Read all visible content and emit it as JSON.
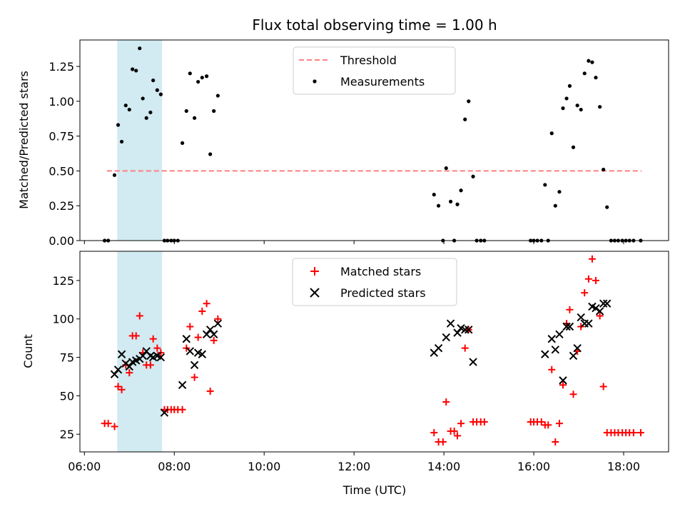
{
  "chart_data": {
    "type": "scatter",
    "title": "Flux total observing time = 1.00 h",
    "xlabel": "Time (UTC)",
    "x_ticks": [
      "06:00",
      "08:00",
      "10:00",
      "12:00",
      "14:00",
      "16:00",
      "18:00"
    ],
    "xlim": [
      5.9,
      19.0
    ],
    "shaded_region": {
      "x": [
        6.73,
        7.73
      ],
      "color": "#add8e6"
    },
    "colors": {
      "threshold": "#ff7f7f",
      "measurements": "#000000",
      "matched": "#ff0000",
      "predicted": "#000000"
    },
    "panels": [
      {
        "ylabel": "Matched/Predicted stars",
        "ylim": [
          0,
          1.44
        ],
        "y_ticks": [
          "0.00",
          "0.25",
          "0.50",
          "0.75",
          "1.00",
          "1.25"
        ],
        "y_tick_values": [
          0,
          0.25,
          0.5,
          0.75,
          1.0,
          1.25
        ],
        "legend": {
          "position": "top-center",
          "entries": [
            "Threshold",
            "Measurements"
          ]
        },
        "threshold": {
          "name": "Threshold",
          "y": 0.5,
          "x": [
            6.5,
            18.4
          ]
        },
        "series": [
          {
            "name": "Measurements",
            "marker": "dot",
            "points": [
              [
                6.45,
                0
              ],
              [
                6.53,
                0
              ],
              [
                6.67,
                0.47
              ],
              [
                6.75,
                0.83
              ],
              [
                6.83,
                0.71
              ],
              [
                6.92,
                0.97
              ],
              [
                7.0,
                0.94
              ],
              [
                7.07,
                1.23
              ],
              [
                7.15,
                1.22
              ],
              [
                7.23,
                1.38
              ],
              [
                7.3,
                1.02
              ],
              [
                7.38,
                0.88
              ],
              [
                7.47,
                0.92
              ],
              [
                7.53,
                1.15
              ],
              [
                7.62,
                1.08
              ],
              [
                7.7,
                1.05
              ],
              [
                7.78,
                0
              ],
              [
                7.85,
                0
              ],
              [
                7.93,
                0
              ],
              [
                8.0,
                0
              ],
              [
                8.08,
                0
              ],
              [
                8.18,
                0.7
              ],
              [
                8.27,
                0.93
              ],
              [
                8.35,
                1.2
              ],
              [
                8.45,
                0.88
              ],
              [
                8.53,
                1.14
              ],
              [
                8.62,
                1.17
              ],
              [
                8.72,
                1.18
              ],
              [
                8.8,
                0.62
              ],
              [
                8.88,
                0.93
              ],
              [
                8.97,
                1.04
              ],
              [
                13.78,
                0.33
              ],
              [
                13.88,
                0.25
              ],
              [
                13.98,
                0
              ],
              [
                14.05,
                0.52
              ],
              [
                14.15,
                0.28
              ],
              [
                14.23,
                0
              ],
              [
                14.3,
                0.26
              ],
              [
                14.38,
                0.36
              ],
              [
                14.47,
                0.87
              ],
              [
                14.55,
                1.0
              ],
              [
                14.65,
                0.46
              ],
              [
                14.73,
                0
              ],
              [
                14.82,
                0
              ],
              [
                14.9,
                0
              ],
              [
                15.93,
                0
              ],
              [
                16.0,
                0
              ],
              [
                16.08,
                0
              ],
              [
                16.17,
                0
              ],
              [
                16.25,
                0.4
              ],
              [
                16.32,
                0
              ],
              [
                16.4,
                0.77
              ],
              [
                16.48,
                0.25
              ],
              [
                16.57,
                0.35
              ],
              [
                16.65,
                0.95
              ],
              [
                16.73,
                1.02
              ],
              [
                16.8,
                1.11
              ],
              [
                16.88,
                0.67
              ],
              [
                16.97,
                0.97
              ],
              [
                17.05,
                0.94
              ],
              [
                17.13,
                1.2
              ],
              [
                17.22,
                1.29
              ],
              [
                17.3,
                1.28
              ],
              [
                17.38,
                1.17
              ],
              [
                17.47,
                0.96
              ],
              [
                17.55,
                0.51
              ],
              [
                17.63,
                0.24
              ],
              [
                17.72,
                0
              ],
              [
                17.8,
                0
              ],
              [
                17.88,
                0
              ],
              [
                17.97,
                0
              ],
              [
                18.05,
                0
              ],
              [
                18.13,
                0
              ],
              [
                18.22,
                0
              ],
              [
                18.38,
                0
              ]
            ]
          }
        ]
      },
      {
        "ylabel": "Count",
        "ylim": [
          13.5,
          144
        ],
        "y_ticks": [
          "25",
          "50",
          "75",
          "100",
          "125"
        ],
        "y_tick_values": [
          25,
          50,
          75,
          100,
          125
        ],
        "legend": {
          "position": "top-center",
          "entries": [
            "Matched stars",
            "Predicted stars"
          ]
        },
        "series": [
          {
            "name": "Matched stars",
            "marker": "plus",
            "points": [
              [
                6.45,
                32
              ],
              [
                6.53,
                32
              ],
              [
                6.67,
                30
              ],
              [
                6.75,
                56
              ],
              [
                6.83,
                54
              ],
              [
                6.92,
                70
              ],
              [
                7.0,
                65
              ],
              [
                7.07,
                89
              ],
              [
                7.15,
                89
              ],
              [
                7.23,
                102
              ],
              [
                7.3,
                78
              ],
              [
                7.38,
                70
              ],
              [
                7.47,
                70
              ],
              [
                7.53,
                87
              ],
              [
                7.62,
                81
              ],
              [
                7.7,
                78
              ],
              [
                7.78,
                41
              ],
              [
                7.85,
                41
              ],
              [
                7.93,
                41
              ],
              [
                8.0,
                41
              ],
              [
                8.08,
                41
              ],
              [
                8.18,
                41
              ],
              [
                8.27,
                81
              ],
              [
                8.35,
                95
              ],
              [
                8.45,
                62
              ],
              [
                8.53,
                88
              ],
              [
                8.62,
                105
              ],
              [
                8.72,
                110
              ],
              [
                8.8,
                53
              ],
              [
                8.88,
                86
              ],
              [
                8.97,
                100
              ],
              [
                13.78,
                26
              ],
              [
                13.88,
                20
              ],
              [
                13.98,
                20
              ],
              [
                14.05,
                46
              ],
              [
                14.15,
                27
              ],
              [
                14.23,
                27
              ],
              [
                14.3,
                24
              ],
              [
                14.38,
                32
              ],
              [
                14.47,
                81
              ],
              [
                14.55,
                93
              ],
              [
                14.65,
                33
              ],
              [
                14.73,
                33
              ],
              [
                14.82,
                33
              ],
              [
                14.9,
                33
              ],
              [
                15.93,
                33
              ],
              [
                16.0,
                33
              ],
              [
                16.08,
                33
              ],
              [
                16.17,
                33
              ],
              [
                16.25,
                31
              ],
              [
                16.32,
                31
              ],
              [
                16.4,
                67
              ],
              [
                16.48,
                20
              ],
              [
                16.57,
                32
              ],
              [
                16.65,
                57
              ],
              [
                16.73,
                97
              ],
              [
                16.8,
                106
              ],
              [
                16.88,
                51
              ],
              [
                16.97,
                79
              ],
              [
                17.05,
                95
              ],
              [
                17.13,
                117
              ],
              [
                17.22,
                126
              ],
              [
                17.3,
                139
              ],
              [
                17.38,
                125
              ],
              [
                17.47,
                102
              ],
              [
                17.55,
                56
              ],
              [
                17.63,
                26
              ],
              [
                17.72,
                26
              ],
              [
                17.8,
                26
              ],
              [
                17.88,
                26
              ],
              [
                17.97,
                26
              ],
              [
                18.05,
                26
              ],
              [
                18.13,
                26
              ],
              [
                18.22,
                26
              ],
              [
                18.38,
                26
              ]
            ]
          },
          {
            "name": "Predicted stars",
            "marker": "x",
            "points": [
              [
                6.67,
                64
              ],
              [
                6.75,
                67
              ],
              [
                6.83,
                77
              ],
              [
                6.92,
                71
              ],
              [
                7.0,
                69
              ],
              [
                7.07,
                72
              ],
              [
                7.15,
                73
              ],
              [
                7.23,
                74
              ],
              [
                7.3,
                76
              ],
              [
                7.38,
                79
              ],
              [
                7.47,
                76
              ],
              [
                7.53,
                75
              ],
              [
                7.62,
                76
              ],
              [
                7.7,
                75
              ],
              [
                7.78,
                39
              ],
              [
                8.18,
                57
              ],
              [
                8.27,
                87
              ],
              [
                8.35,
                79
              ],
              [
                8.45,
                70
              ],
              [
                8.53,
                78
              ],
              [
                8.62,
                77
              ],
              [
                8.72,
                90
              ],
              [
                8.8,
                93
              ],
              [
                8.88,
                90
              ],
              [
                8.97,
                97
              ],
              [
                13.78,
                78
              ],
              [
                13.88,
                81
              ],
              [
                14.05,
                88
              ],
              [
                14.15,
                97
              ],
              [
                14.3,
                91
              ],
              [
                14.38,
                94
              ],
              [
                14.47,
                93
              ],
              [
                14.55,
                93
              ],
              [
                14.65,
                72
              ],
              [
                16.25,
                77
              ],
              [
                16.4,
                87
              ],
              [
                16.48,
                80
              ],
              [
                16.57,
                90
              ],
              [
                16.65,
                60
              ],
              [
                16.73,
                95
              ],
              [
                16.8,
                95
              ],
              [
                16.88,
                76
              ],
              [
                16.97,
                81
              ],
              [
                17.05,
                101
              ],
              [
                17.13,
                97
              ],
              [
                17.22,
                97
              ],
              [
                17.3,
                108
              ],
              [
                17.38,
                107
              ],
              [
                17.47,
                105
              ],
              [
                17.55,
                110
              ],
              [
                17.63,
                110
              ]
            ]
          }
        ]
      }
    ]
  }
}
